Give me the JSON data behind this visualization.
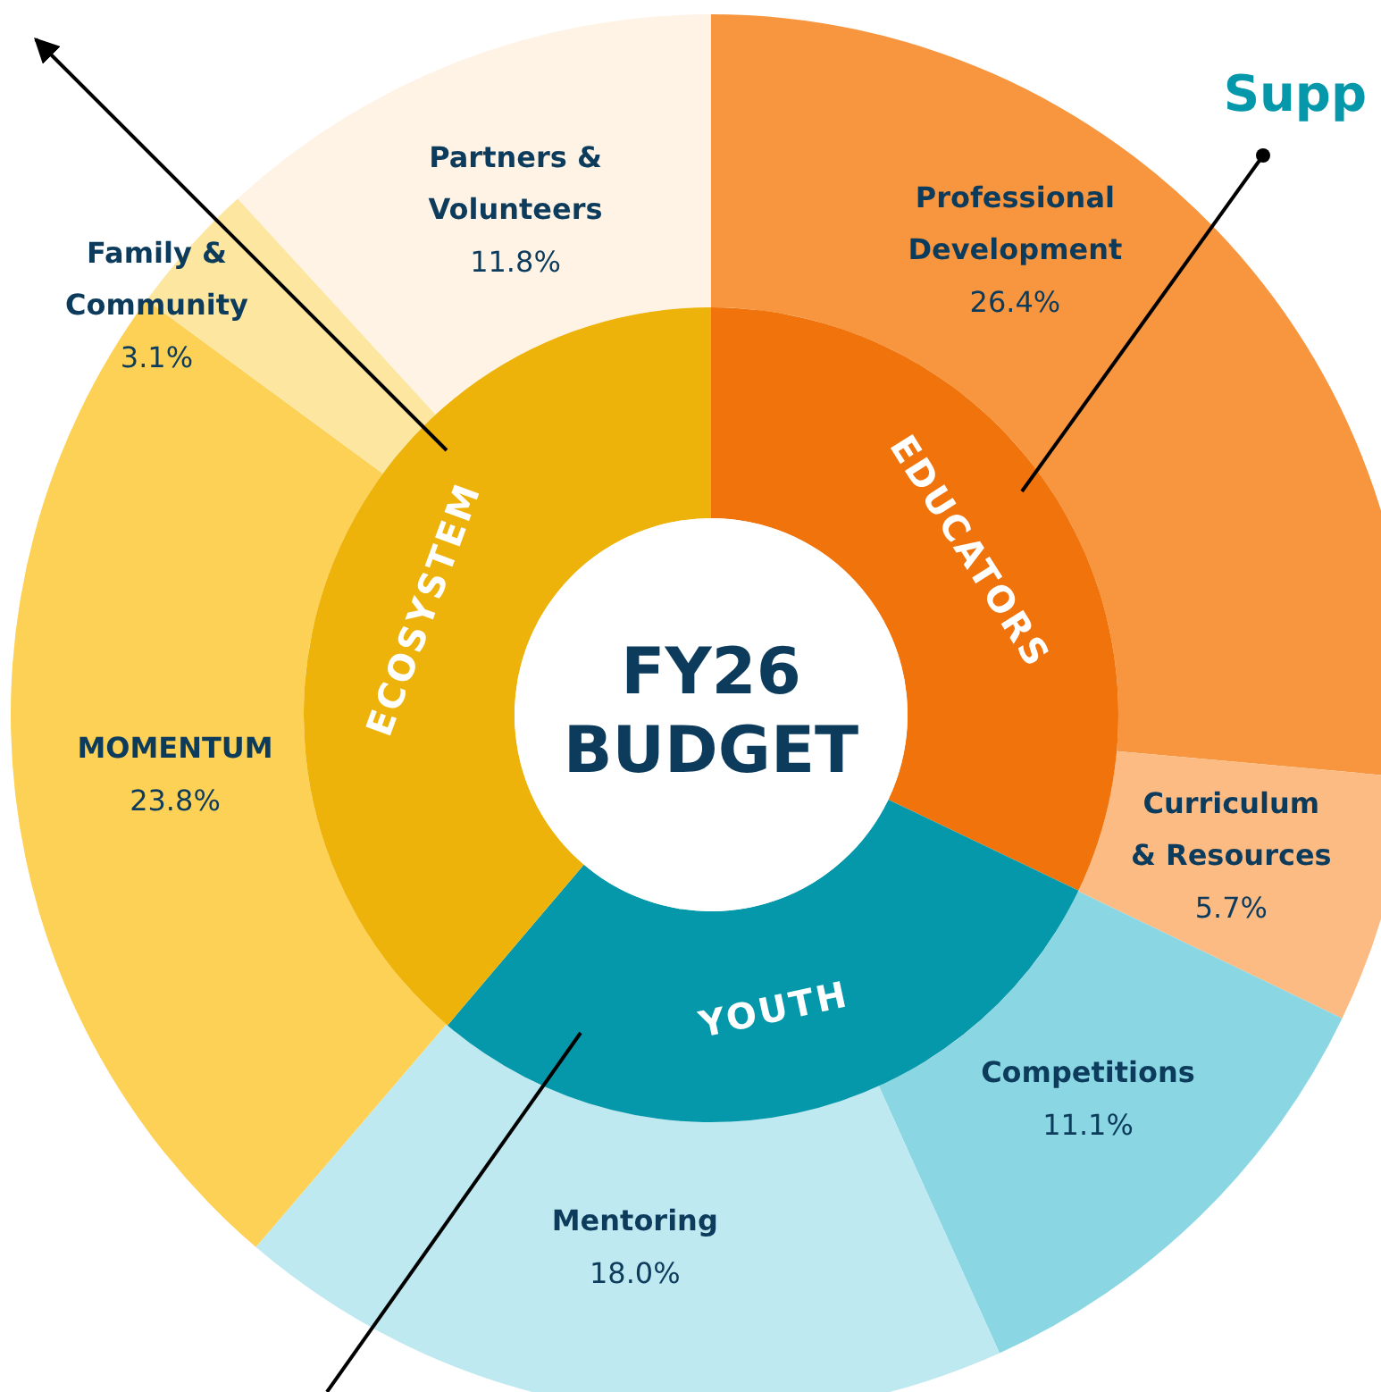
{
  "chart_data": [
    {
      "type": "donut",
      "categories": [
        "Professional Development",
        "Curriculum & Resources",
        "Competitions",
        "Mentoring",
        "MOMENTUM",
        "Family & Community",
        "Partners & Volunteers"
      ],
      "values": [
        26.4,
        5.7,
        11.1,
        18.0,
        23.8,
        3.1,
        11.8
      ],
      "value_labels": [
        "26.4%",
        "5.7%",
        "11.1%",
        "18.0%",
        "23.8%",
        "3.1%",
        "11.8%"
      ],
      "colors": [
        "#f7963f",
        "#fdbb84",
        "#8ad7e3",
        "#bfe9f0",
        "#fdd155",
        "#fde6a0",
        "#fef3e5"
      ],
      "annotations": [
        "Supp"
      ]
    },
    {
      "type": "donut",
      "title": "FY26 BUDGET",
      "categories": [
        "EDUCATORS",
        "YOUTH",
        "ECOSYSTEM"
      ],
      "values": [
        32.1,
        29.1,
        38.8
      ],
      "colors": [
        "#f0740b",
        "#0598ab",
        "#eeb30a"
      ]
    }
  ]
}
